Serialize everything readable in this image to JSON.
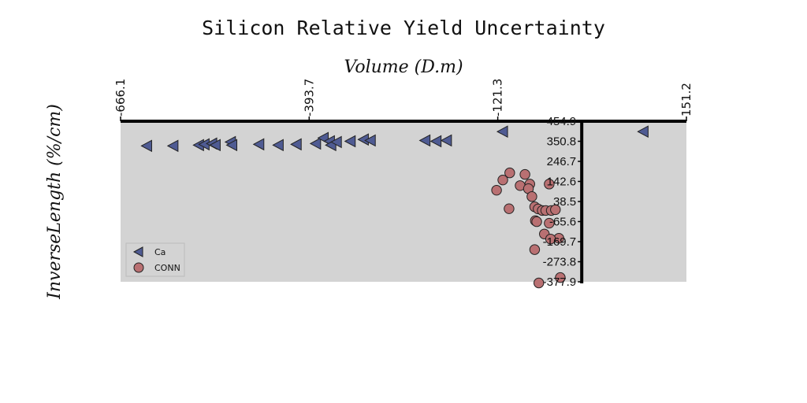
{
  "chart_data": {
    "type": "scatter",
    "title": "Silicon Relative Yield Uncertainty",
    "xlabel": "Volume (D.m)",
    "ylabel": "InverseLength (%/cm)",
    "xlim": [
      -666.1,
      151.2
    ],
    "ylim": [
      -377.9,
      454.9
    ],
    "x_ticks": [
      "-666.1",
      "-393.7",
      "-121.3",
      "151.2"
    ],
    "y_ticks": [
      "454.9",
      "350.8",
      "246.7",
      "142.6",
      "38.5",
      "-65.6",
      "-169.7",
      "-273.8",
      "-377.9"
    ],
    "x_tick_values": [
      -666.1,
      -393.7,
      -121.3,
      151.2
    ],
    "y_tick_values": [
      454.9,
      350.8,
      246.7,
      142.6,
      38.5,
      -65.6,
      -169.7,
      -273.8,
      -377.9
    ],
    "grid": false,
    "legend_position": "lower-left",
    "background": "#d3d3d3",
    "series": [
      {
        "name": "Ca",
        "marker": "triangle-left",
        "color": "#4f5b93",
        "points": [
          [
            -628,
            327
          ],
          [
            -590,
            327
          ],
          [
            -553,
            331
          ],
          [
            -545,
            335
          ],
          [
            -534,
            339
          ],
          [
            -529,
            331
          ],
          [
            -507,
            347
          ],
          [
            -505,
            331
          ],
          [
            -466,
            335
          ],
          [
            -438,
            331
          ],
          [
            -412,
            335
          ],
          [
            -384,
            339
          ],
          [
            -373,
            368
          ],
          [
            -364,
            351
          ],
          [
            -362,
            331
          ],
          [
            -354,
            347
          ],
          [
            -334,
            351
          ],
          [
            -315,
            360
          ],
          [
            -305,
            355
          ],
          [
            -226,
            355
          ],
          [
            -210,
            351
          ],
          [
            -195,
            355
          ],
          [
            -114,
            401
          ],
          [
            89,
            401
          ]
        ]
      },
      {
        "name": "CONN",
        "marker": "circle",
        "color": "#b97072",
        "points": [
          [
            -104,
            187
          ],
          [
            -114,
            150
          ],
          [
            -123,
            97
          ],
          [
            -89,
            121
          ],
          [
            -82,
            179
          ],
          [
            -75,
            129
          ],
          [
            -77,
            105
          ],
          [
            -72,
            64
          ],
          [
            -68,
            11
          ],
          [
            -63,
            0
          ],
          [
            -57,
            -8
          ],
          [
            -52,
            -8
          ],
          [
            -47,
            129
          ],
          [
            -44,
            -8
          ],
          [
            -38,
            -4
          ],
          [
            -105,
            1
          ],
          [
            -67,
            -61
          ],
          [
            -65,
            -66
          ],
          [
            -47,
            -74
          ],
          [
            -54,
            -130
          ],
          [
            -33,
            -152
          ],
          [
            -45,
            -156
          ],
          [
            -68,
            -211
          ],
          [
            -62,
            -384
          ],
          [
            -31,
            -356
          ]
        ]
      }
    ]
  }
}
